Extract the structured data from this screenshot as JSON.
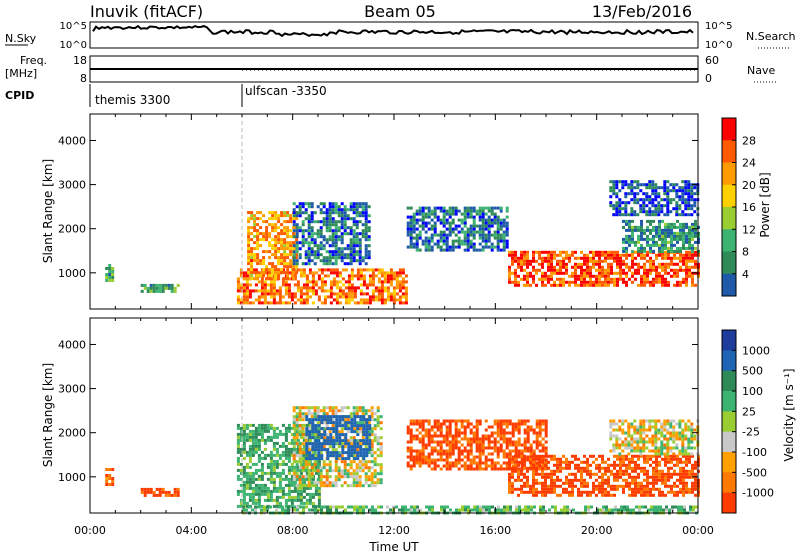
{
  "header": {
    "station": "Inuvik (fitACF)",
    "beam": "Beam 05",
    "date": "13/Feb/2016"
  },
  "top_panels": {
    "nsky_label": "N.Sky",
    "nsearch_label": "N.Search",
    "nsky_ticks": [
      "10^5",
      "10^0"
    ],
    "nsearch_ticks": [
      "10^5",
      "10^0"
    ],
    "freq_label_1": "Freq.",
    "freq_label_2": "[MHz]",
    "freq_ticks": [
      "18",
      "8"
    ],
    "nave_label": "Nave",
    "nave_ticks": [
      "60",
      "0"
    ],
    "cpid_label": "CPID",
    "cpid_segments": [
      {
        "name": "themis 3300",
        "start_hour": 0,
        "end_hour": 6
      },
      {
        "name": "ulfscan -3350",
        "start_hour": 6,
        "end_hour": 24
      }
    ]
  },
  "power_colorbar": {
    "label": "Power [dB]",
    "ticks": [
      "28",
      "24",
      "20",
      "16",
      "12",
      "8",
      "4"
    ],
    "colors": [
      "#ff0000",
      "#ff5a00",
      "#ff9a00",
      "#ffd000",
      "#9acd32",
      "#3cb371",
      "#2e8b57",
      "#1e5aa8",
      "#0000ff"
    ]
  },
  "velocity_colorbar": {
    "label": "Velocity [m s⁻¹]",
    "ticks": [
      "1000",
      "500",
      "100",
      "25",
      "-25",
      "-100",
      "-500",
      "-1000"
    ],
    "colors": [
      "#1e3c9b",
      "#1e64b4",
      "#2e8b57",
      "#3cb371",
      "#9acd32",
      "#c8c8c8",
      "#ffa000",
      "#ff7800",
      "#ff3c00",
      "#ff0000"
    ]
  },
  "chart_data": [
    {
      "type": "heatmap",
      "panel": "power",
      "ylabel": "Slant Range [km]",
      "ylim": [
        180,
        4600
      ],
      "xlim": [
        0,
        24
      ],
      "yticks": [
        1000,
        2000,
        3000,
        4000
      ],
      "xticks": [
        "00:00",
        "04:00",
        "08:00",
        "12:00",
        "16:00",
        "20:00",
        "00:00"
      ],
      "features": [
        {
          "x0": 0.6,
          "x1": 0.9,
          "y0": 800,
          "y1": 1200,
          "value": 12
        },
        {
          "x0": 2.0,
          "x1": 3.5,
          "y0": 550,
          "y1": 750,
          "value": 12
        },
        {
          "x0": 5.8,
          "x1": 12.5,
          "y0": 300,
          "y1": 1100,
          "value": 24
        },
        {
          "x0": 6.2,
          "x1": 8.2,
          "y0": 900,
          "y1": 2400,
          "value": 22
        },
        {
          "x0": 8.0,
          "x1": 11.0,
          "y0": 1200,
          "y1": 2600,
          "value": 8
        },
        {
          "x0": 12.5,
          "x1": 16.5,
          "y0": 1500,
          "y1": 2500,
          "value": 8
        },
        {
          "x0": 16.5,
          "x1": 24.0,
          "y0": 700,
          "y1": 1500,
          "value": 26
        },
        {
          "x0": 21.0,
          "x1": 24.0,
          "y0": 1500,
          "y1": 2200,
          "value": 10
        },
        {
          "x0": 20.5,
          "x1": 24.0,
          "y0": 2300,
          "y1": 3100,
          "value": 6
        }
      ]
    },
    {
      "type": "heatmap",
      "panel": "velocity",
      "xlabel": "Time UT",
      "ylabel": "Slant Range [km]",
      "ylim": [
        180,
        4600
      ],
      "xlim": [
        0,
        24
      ],
      "yticks": [
        1000,
        2000,
        3000,
        4000
      ],
      "xticks": [
        "00:00",
        "04:00",
        "08:00",
        "12:00",
        "16:00",
        "20:00",
        "00:00"
      ],
      "features": [
        {
          "x0": 0.6,
          "x1": 0.9,
          "y0": 800,
          "y1": 1200,
          "value": -200
        },
        {
          "x0": 2.0,
          "x1": 3.5,
          "y0": 550,
          "y1": 750,
          "value": -300
        },
        {
          "x0": 5.8,
          "x1": 9.0,
          "y0": 300,
          "y1": 2200,
          "value": 200
        },
        {
          "x0": 8.0,
          "x1": 11.5,
          "y0": 800,
          "y1": 2600,
          "value": 0
        },
        {
          "x0": 8.5,
          "x1": 11.0,
          "y0": 1400,
          "y1": 2400,
          "value": 700
        },
        {
          "x0": 12.5,
          "x1": 18.0,
          "y0": 1200,
          "y1": 2300,
          "value": -300
        },
        {
          "x0": 16.5,
          "x1": 24.0,
          "y0": 600,
          "y1": 1500,
          "value": -300
        },
        {
          "x0": 20.5,
          "x1": 24.0,
          "y0": 1500,
          "y1": 2300,
          "value": 0
        },
        {
          "x0": 6.0,
          "x1": 24.0,
          "y0": 200,
          "y1": 350,
          "value": 150
        }
      ]
    }
  ]
}
